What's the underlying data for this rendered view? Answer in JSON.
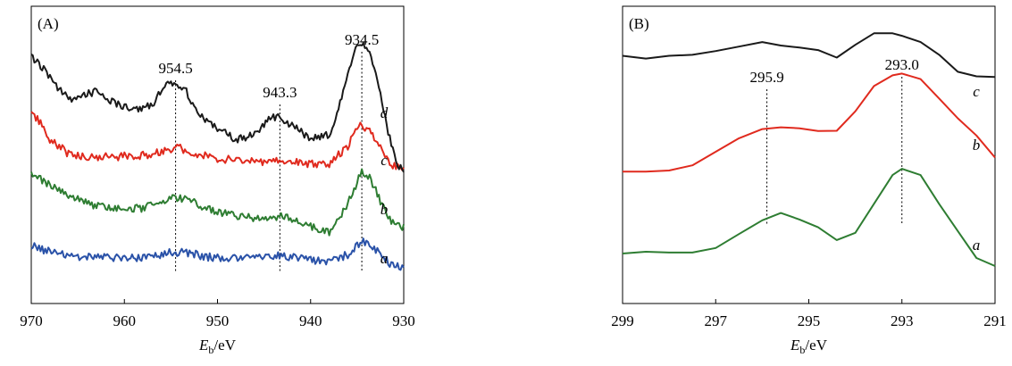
{
  "chart_data": [
    {
      "type": "line",
      "panel_label": "(A)",
      "xlabel_main": "E",
      "xlabel_sub": "b",
      "xlabel_unit": "/eV",
      "xlim": [
        970,
        930
      ],
      "xticks": [
        "970",
        "960",
        "950",
        "940",
        "930"
      ],
      "ylim": [
        0,
        1
      ],
      "peaks": [
        {
          "x": 954.5,
          "label": "954.5"
        },
        {
          "x": 943.3,
          "label": "943.3"
        },
        {
          "x": 934.5,
          "label": "934.5"
        }
      ],
      "series": [
        {
          "name": "a",
          "color": "#2a52a8",
          "x": [
            970,
            968,
            966,
            964,
            962,
            960,
            958,
            956,
            954.5,
            953,
            951,
            949,
            947,
            945,
            943.3,
            942,
            940,
            938,
            936,
            935,
            934.5,
            933.5,
            932,
            931,
            930
          ],
          "y": [
            0.197,
            0.17,
            0.158,
            0.15,
            0.147,
            0.145,
            0.15,
            0.162,
            0.17,
            0.165,
            0.15,
            0.145,
            0.145,
            0.152,
            0.16,
            0.15,
            0.138,
            0.135,
            0.16,
            0.195,
            0.213,
            0.195,
            0.14,
            0.112,
            0.107
          ]
        },
        {
          "name": "b",
          "color": "#2e7d32",
          "x": [
            970,
            968,
            966,
            964,
            962,
            960,
            958,
            956,
            954.5,
            953,
            951,
            949,
            947,
            945,
            943.3,
            942,
            940,
            938,
            936.5,
            935,
            934.5,
            933.5,
            932,
            931,
            930
          ],
          "y": [
            0.477,
            0.443,
            0.4,
            0.363,
            0.353,
            0.34,
            0.347,
            0.37,
            0.387,
            0.377,
            0.343,
            0.323,
            0.313,
            0.303,
            0.313,
            0.303,
            0.27,
            0.253,
            0.33,
            0.447,
            0.5,
            0.457,
            0.33,
            0.283,
            0.27
          ]
        },
        {
          "name": "c",
          "color": "#e02a1e",
          "x": [
            970,
            969,
            968,
            966,
            964,
            962,
            960,
            958,
            956,
            954.5,
            953,
            951,
            949,
            947,
            945,
            943.3,
            942,
            940,
            938,
            936,
            935,
            934.5,
            933.5,
            932,
            931,
            930
          ],
          "y": [
            0.733,
            0.683,
            0.623,
            0.563,
            0.553,
            0.55,
            0.553,
            0.557,
            0.573,
            0.59,
            0.573,
            0.55,
            0.54,
            0.537,
            0.533,
            0.54,
            0.533,
            0.523,
            0.523,
            0.593,
            0.67,
            0.68,
            0.653,
            0.547,
            0.513,
            0.503
          ]
        },
        {
          "name": "d",
          "color": "#1a1a1a",
          "x": [
            970,
            968,
            966,
            965,
            963,
            961,
            959,
            957,
            955.5,
            954.5,
            953.5,
            952,
            950,
            948,
            946,
            944.5,
            943.3,
            942,
            940,
            938,
            937,
            936,
            935,
            934.5,
            933.5,
            932.5,
            931.5,
            930.5,
            930
          ],
          "y": [
            0.957,
            0.87,
            0.78,
            0.793,
            0.813,
            0.763,
            0.737,
            0.76,
            0.84,
            0.843,
            0.82,
            0.723,
            0.66,
            0.623,
            0.64,
            0.703,
            0.713,
            0.677,
            0.623,
            0.643,
            0.743,
            0.893,
            0.993,
            1.0,
            0.953,
            0.803,
            0.623,
            0.51,
            0.497
          ]
        }
      ]
    },
    {
      "type": "line",
      "panel_label": "(B)",
      "xlabel_main": "E",
      "xlabel_sub": "b",
      "xlabel_unit": "/eV",
      "xlim": [
        299,
        291
      ],
      "xticks": [
        "299",
        "297",
        "295",
        "293",
        "291"
      ],
      "ylim": [
        0,
        1
      ],
      "peaks": [
        {
          "x": 295.9,
          "label": "295.9"
        },
        {
          "x": 293.0,
          "label": "293.0"
        }
      ],
      "series": [
        {
          "name": "a",
          "color": "#2e7d32",
          "x": [
            299,
            298.5,
            298,
            297.5,
            297,
            296.5,
            296,
            295.6,
            295.2,
            294.8,
            294.4,
            294,
            293.6,
            293.2,
            293,
            292.6,
            292.2,
            291.8,
            291.4,
            291
          ],
          "y": [
            0.075,
            0.082,
            0.079,
            0.079,
            0.097,
            0.153,
            0.208,
            0.237,
            0.211,
            0.18,
            0.129,
            0.158,
            0.274,
            0.389,
            0.414,
            0.389,
            0.273,
            0.165,
            0.057,
            0.025
          ]
        },
        {
          "name": "b",
          "color": "#e02a1e",
          "x": [
            299,
            298.5,
            298,
            297.5,
            297,
            296.5,
            296,
            295.6,
            295.2,
            294.8,
            294.4,
            294,
            293.6,
            293.2,
            293,
            292.6,
            292.2,
            291.8,
            291.4,
            291
          ],
          "y": [
            0.403,
            0.403,
            0.407,
            0.428,
            0.482,
            0.536,
            0.573,
            0.58,
            0.576,
            0.565,
            0.566,
            0.644,
            0.745,
            0.788,
            0.795,
            0.773,
            0.695,
            0.616,
            0.547,
            0.459
          ]
        },
        {
          "name": "c",
          "color": "#1a1a1a",
          "x": [
            299,
            298.5,
            298,
            297.5,
            297,
            296.5,
            296,
            295.6,
            295.2,
            294.8,
            294.4,
            294,
            293.6,
            293.2,
            293,
            292.6,
            292.2,
            291.8,
            291.4,
            291
          ],
          "y": [
            0.866,
            0.855,
            0.866,
            0.87,
            0.885,
            0.903,
            0.921,
            0.907,
            0.899,
            0.889,
            0.859,
            0.91,
            0.956,
            0.956,
            0.946,
            0.921,
            0.87,
            0.802,
            0.784,
            0.781
          ]
        }
      ]
    }
  ]
}
